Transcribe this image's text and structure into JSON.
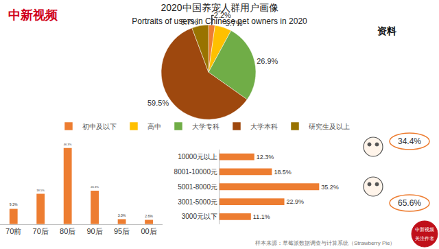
{
  "chart_data": [
    {
      "type": "pie",
      "title": "2020中国养宠人群用户画像",
      "subtitle": "Portraits of users in Chinese pet owners in 2020",
      "categories": [
        "初中及以下",
        "高中",
        "大学专科",
        "大学本科",
        "研究生及以上"
      ],
      "values": [
        2.2,
        5.7,
        26.9,
        59.5,
        5.7
      ],
      "value_labels": [
        "2.2%",
        "5.7%",
        "26.9%",
        "59.5%",
        "5.7%"
      ],
      "colors": [
        "#ed7d31",
        "#ffc000",
        "#70ad47",
        "#9e480e",
        "#997300"
      ],
      "data_labels": true,
      "legend": "bottom",
      "annotations": [
        "中新视频",
        "资料"
      ]
    },
    {
      "type": "bar",
      "categories": [
        "70前",
        "70后",
        "80后",
        "90后",
        "95后",
        "00后"
      ],
      "values": [
        9.3,
        18.5,
        46.3,
        20.3,
        3.0,
        2.6
      ],
      "value_labels": [
        "9.3%",
        "18.5%",
        "46.3%",
        "20.3%",
        "3.0%",
        "2.6%"
      ],
      "color": "#ed7d31",
      "data_labels": true,
      "tick_labels": "x",
      "ylim": [
        0,
        50
      ]
    },
    {
      "type": "bar",
      "orientation": "horizontal",
      "categories": [
        "10000元以上",
        "8001-10000元",
        "5001-8000元",
        "3001-5000元",
        "3000元以下"
      ],
      "values": [
        12.3,
        18.5,
        35.2,
        22.9,
        11.1
      ],
      "value_labels": [
        "12.3%",
        "18.5%",
        "35.2%",
        "22.9%",
        "11.1%"
      ],
      "color": "#ed7d31",
      "data_labels": true,
      "tick_labels": "y",
      "xlim": [
        0,
        40
      ],
      "annotations": [
        "34.4%",
        "65.6%",
        "样本来源：草莓派数据调查与计算系统（Strawberry Pie）",
        "中新视频",
        "关注作者"
      ]
    }
  ]
}
